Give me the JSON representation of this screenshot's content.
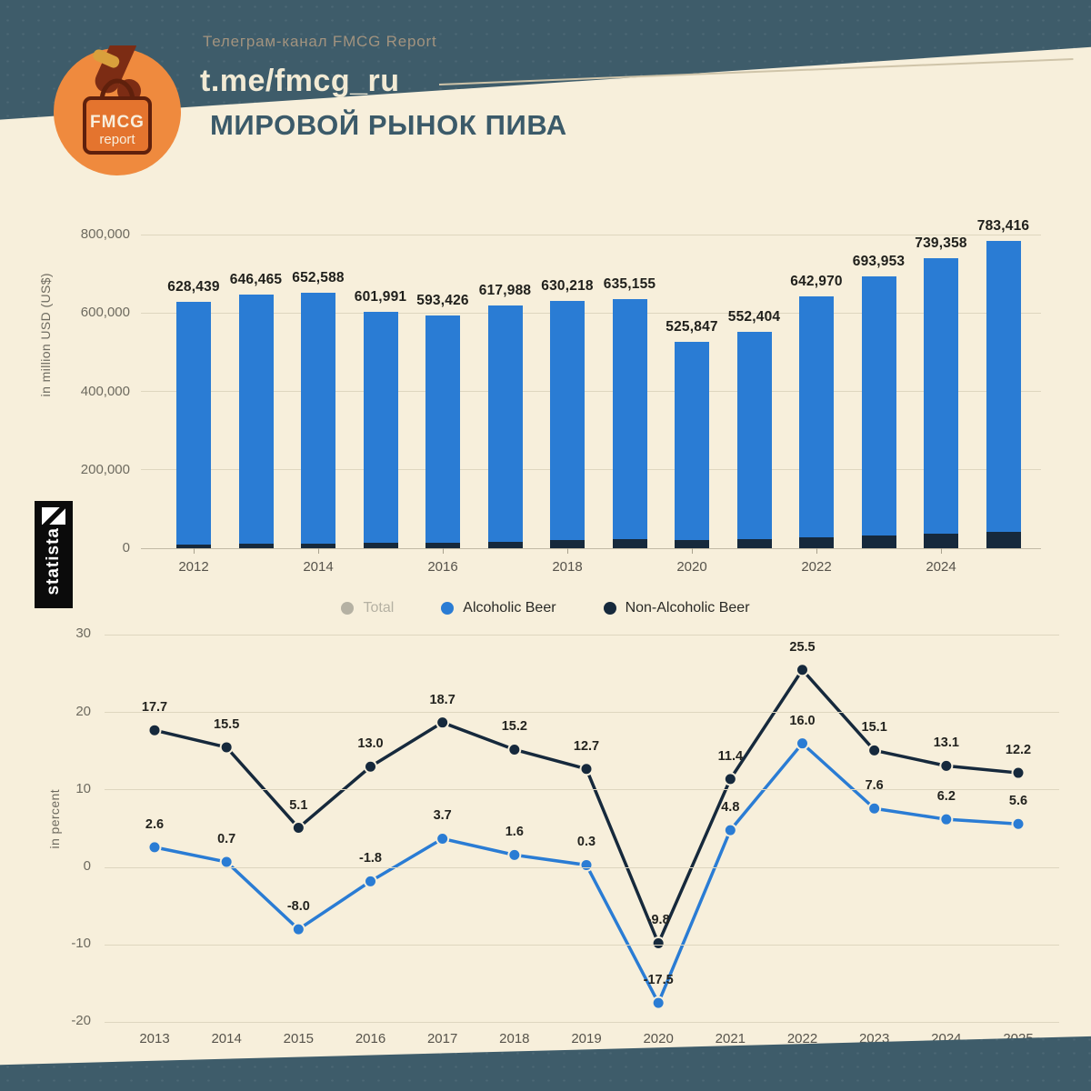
{
  "header": {
    "channel_label": "Телеграм-канал FMCG Report",
    "channel_url": "t.me/fmcg_ru",
    "title": "МИРОВОЙ РЫНОК ПИВА",
    "logo_line1": "FMCG",
    "logo_line2": "report"
  },
  "statista_label": "statista",
  "colors": {
    "background": "#f7efdb",
    "band": "#3e5c6a",
    "accent_orange": "#ef8a3e",
    "blue": "#2a7cd4",
    "navy": "#16293c",
    "muted_gray": "#b5b1a3"
  },
  "legend": {
    "items": [
      {
        "label": "Total",
        "color": "#b5b1a3",
        "muted": true
      },
      {
        "label": "Alcoholic Beer",
        "color": "#2a7cd4",
        "muted": false
      },
      {
        "label": "Non-Alcoholic Beer",
        "color": "#16293c",
        "muted": false
      }
    ]
  },
  "chart_data": [
    {
      "type": "bar",
      "stacked": true,
      "title": "",
      "xlabel": "",
      "ylabel": "in million USD (US$)",
      "ylim": [
        0,
        800000
      ],
      "grid": true,
      "y_tick_values": [
        0,
        200000,
        400000,
        600000,
        800000
      ],
      "y_tick_labels": [
        "0",
        "200,000",
        "400,000",
        "600,000",
        "800,000"
      ],
      "categories": [
        "2012",
        "2013",
        "2014",
        "2015",
        "2016",
        "2017",
        "2018",
        "2019",
        "2020",
        "2021",
        "2022",
        "2023",
        "2024",
        "2025"
      ],
      "x_tick_labels": [
        "2012",
        "2014",
        "2016",
        "2018",
        "2020",
        "2022",
        "2024"
      ],
      "x_tick_indices": [
        0,
        2,
        4,
        6,
        8,
        10,
        12
      ],
      "totals": [
        628439,
        646465,
        652588,
        601991,
        593426,
        617988,
        630218,
        635155,
        525847,
        552404,
        642970,
        693953,
        739358,
        783416
      ],
      "total_labels": [
        "628,439",
        "646,465",
        "652,588",
        "601,991",
        "593,426",
        "617,988",
        "630,218",
        "635,155",
        "525,847",
        "552,404",
        "642,970",
        "693,953",
        "739,358",
        "783,416"
      ],
      "series": [
        {
          "name": "Non-Alcoholic Beer",
          "color": "#16293c",
          "values": [
            9000,
            10600,
            12200,
            12900,
            14500,
            17200,
            19900,
            22400,
            20200,
            22500,
            28200,
            32500,
            36800,
            41200
          ]
        },
        {
          "name": "Alcoholic Beer",
          "color": "#2a7cd4",
          "values": [
            619439,
            635865,
            640388,
            589091,
            578926,
            600788,
            610318,
            612755,
            505647,
            529904,
            614770,
            661453,
            702558,
            742216
          ]
        }
      ]
    },
    {
      "type": "line",
      "title": "",
      "xlabel": "",
      "ylabel": "in percent",
      "ylim": [
        -20,
        30
      ],
      "grid": true,
      "y_tick_values": [
        30,
        20,
        10,
        0,
        -10,
        -20
      ],
      "y_tick_labels": [
        "30",
        "20",
        "10",
        "0",
        "-10",
        "-20"
      ],
      "x": [
        "2013",
        "2014",
        "2015",
        "2016",
        "2017",
        "2018",
        "2019",
        "2020",
        "2021",
        "2022",
        "2023",
        "2024",
        "2025"
      ],
      "series": [
        {
          "name": "Non-Alcoholic Beer",
          "color": "#16293c",
          "values": [
            17.7,
            15.5,
            5.1,
            13.0,
            18.7,
            15.2,
            12.7,
            -9.8,
            11.4,
            25.5,
            15.1,
            13.1,
            12.2
          ],
          "labels": [
            "17.7",
            "15.5",
            "5.1",
            "13.0",
            "18.7",
            "15.2",
            "12.7",
            "-9.8",
            "11.4",
            "25.5",
            "15.1",
            "13.1",
            "12.2"
          ]
        },
        {
          "name": "Alcoholic Beer",
          "color": "#2a7cd4",
          "values": [
            2.6,
            0.7,
            -8.0,
            -1.8,
            3.7,
            1.6,
            0.3,
            -17.5,
            4.8,
            16.0,
            7.6,
            6.2,
            5.6
          ],
          "labels": [
            "2.6",
            "0.7",
            "-8.0",
            "-1.8",
            "3.7",
            "1.6",
            "0.3",
            "-17.5",
            "4.8",
            "16.0",
            "7.6",
            "6.2",
            "5.6"
          ]
        }
      ]
    }
  ]
}
